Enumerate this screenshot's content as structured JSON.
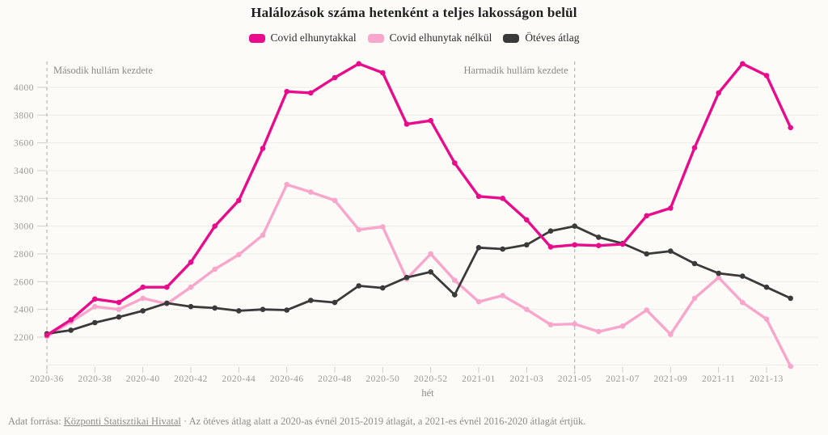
{
  "page": {
    "background": "#fcfbf8",
    "footer": {
      "prefix": "Adat forrása: ",
      "link": "Központi Statisztikai Hivatal",
      "suffix": " · Az ötéves átlag alatt a 2020-as évnél 2015-2019 átlagát, a 2021-es évnél 2016-2020 átlagát értjük."
    }
  },
  "chart_data": {
    "type": "line",
    "title": "Halálozások száma hetenként a teljes lakosságon belül",
    "xlabel": "hét",
    "ylabel": "",
    "grid": true,
    "legend_position": "top",
    "ylim": [
      1980,
      4200
    ],
    "yticks": [
      2200,
      2400,
      2600,
      2800,
      3000,
      3200,
      3400,
      3600,
      3800,
      4000
    ],
    "unlabeled_gridlines": [
      2000
    ],
    "xticklabels": [
      "2020-36",
      "2020-38",
      "2020-40",
      "2020-42",
      "2020-44",
      "2020-46",
      "2020-48",
      "2020-50",
      "2020-52",
      "2021-01",
      "2021-03",
      "2021-05",
      "2021-07",
      "2021-09",
      "2021-11",
      "2021-13"
    ],
    "categories": [
      "2020-36",
      "2020-37",
      "2020-38",
      "2020-39",
      "2020-40",
      "2020-41",
      "2020-42",
      "2020-43",
      "2020-44",
      "2020-45",
      "2020-46",
      "2020-47",
      "2020-48",
      "2020-49",
      "2020-50",
      "2020-51",
      "2020-52",
      "2020-53",
      "2021-01",
      "2021-02",
      "2021-03",
      "2021-04",
      "2021-05",
      "2021-06",
      "2021-07",
      "2021-08",
      "2021-09",
      "2021-10",
      "2021-11",
      "2021-12",
      "2021-13",
      "2021-14"
    ],
    "series": [
      {
        "name": "Covid elhunytakkal",
        "color": "#e80c8c",
        "values": [
          2215,
          2325,
          2475,
          2450,
          2560,
          2560,
          2740,
          3000,
          3185,
          3560,
          3970,
          3960,
          4070,
          4170,
          4105,
          3735,
          3760,
          3455,
          3215,
          3200,
          3045,
          2850,
          2865,
          2860,
          2870,
          3075,
          3130,
          3565,
          3960,
          4170,
          4085,
          3710
        ]
      },
      {
        "name": "Covid elhunytak nélkül",
        "color": "#f8a6cc",
        "values": [
          2205,
          2310,
          2420,
          2400,
          2480,
          2440,
          2560,
          2690,
          2795,
          2935,
          3300,
          3245,
          3185,
          2975,
          2995,
          2620,
          2800,
          2610,
          2455,
          2500,
          2400,
          2290,
          2295,
          2240,
          2280,
          2395,
          2220,
          2480,
          2630,
          2450,
          2330,
          1990
        ]
      },
      {
        "name": "Ötéves átlag",
        "color": "#3a3a3a",
        "values": [
          2225,
          2250,
          2305,
          2345,
          2390,
          2445,
          2420,
          2410,
          2390,
          2400,
          2395,
          2465,
          2450,
          2570,
          2555,
          2630,
          2670,
          2505,
          2845,
          2835,
          2865,
          2965,
          3000,
          2920,
          2875,
          2800,
          2820,
          2730,
          2660,
          2640,
          2560,
          2480
        ]
      }
    ],
    "annotations": [
      {
        "label": "Második hullám kezdete",
        "category": "2020-36",
        "side": "right"
      },
      {
        "label": "Harmadik hullám kezdete",
        "category": "2021-05",
        "side": "left"
      }
    ],
    "colors": {
      "gridline": "#edebe6",
      "tick_stub": "#cfcec9",
      "axis_text": "#9b9a96",
      "annotation_text": "#8a8986",
      "annotation_line": "#b8b7b3"
    }
  }
}
